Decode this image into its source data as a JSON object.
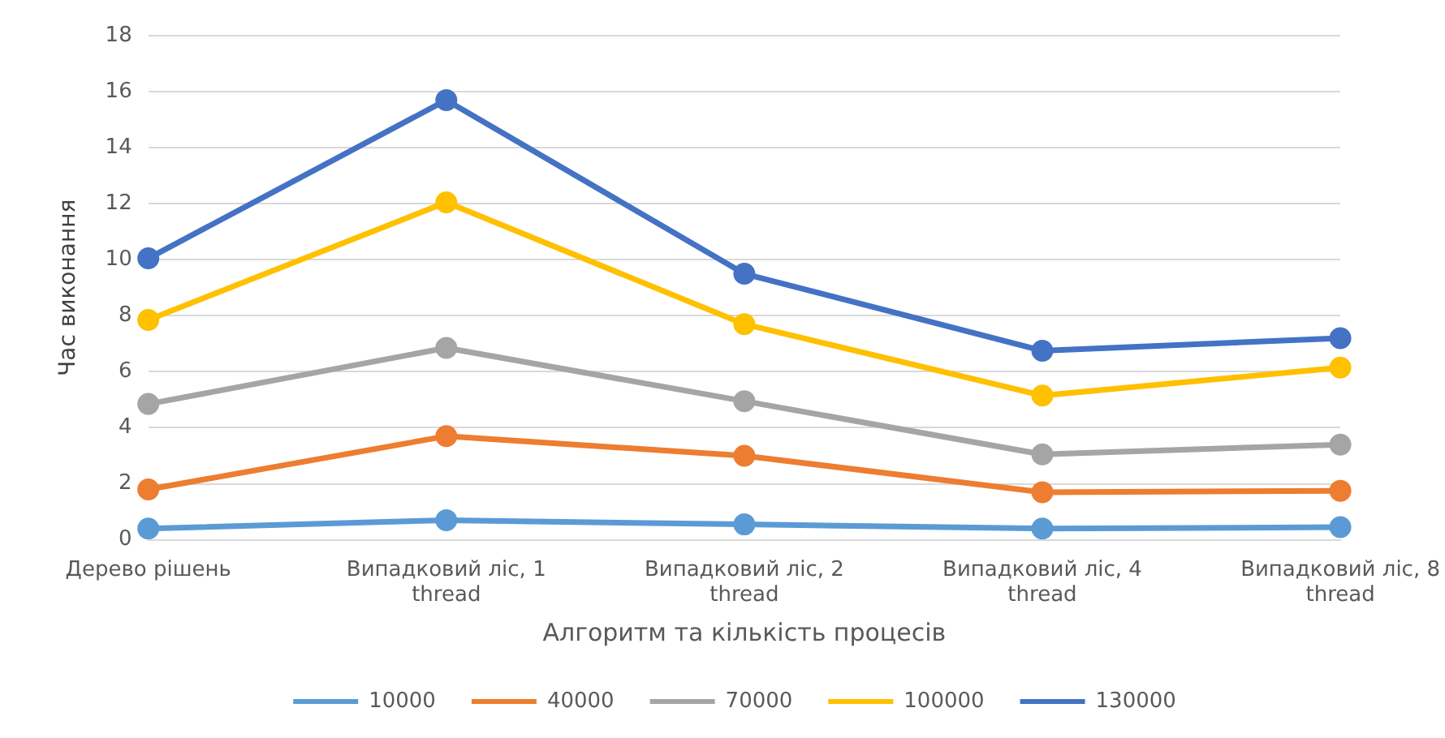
{
  "chart_data": {
    "type": "line",
    "xlabel": "Алгоритм та кількість процесів",
    "ylabel": "Час виконання",
    "categories": [
      "Дерево рішень",
      "Випадковий ліс, 1\nthread",
      "Випадковий ліс, 2\nthread",
      "Випадковий ліс, 4\nthread",
      "Випадковий ліс, 8\nthread"
    ],
    "series": [
      {
        "name": "10000",
        "color": "#5b9bd5",
        "values": [
          0.4,
          0.7,
          0.55,
          0.4,
          0.45
        ]
      },
      {
        "name": "40000",
        "color": "#ed7d31",
        "values": [
          1.8,
          3.7,
          3.0,
          1.7,
          1.75
        ]
      },
      {
        "name": "70000",
        "color": "#a5a5a5",
        "values": [
          4.85,
          6.85,
          4.95,
          3.05,
          3.4
        ]
      },
      {
        "name": "100000",
        "color": "#ffc000",
        "values": [
          7.85,
          12.05,
          7.7,
          5.15,
          6.15
        ]
      },
      {
        "name": "130000",
        "color": "#4472c4",
        "values": [
          10.05,
          15.7,
          9.5,
          6.75,
          7.2
        ]
      }
    ],
    "ylim": [
      0,
      18
    ],
    "yticks": [
      0,
      2,
      4,
      6,
      8,
      10,
      12,
      14,
      16,
      18
    ],
    "grid": "y",
    "legend": "bottom",
    "marker": "circle",
    "line_style": "solid"
  }
}
